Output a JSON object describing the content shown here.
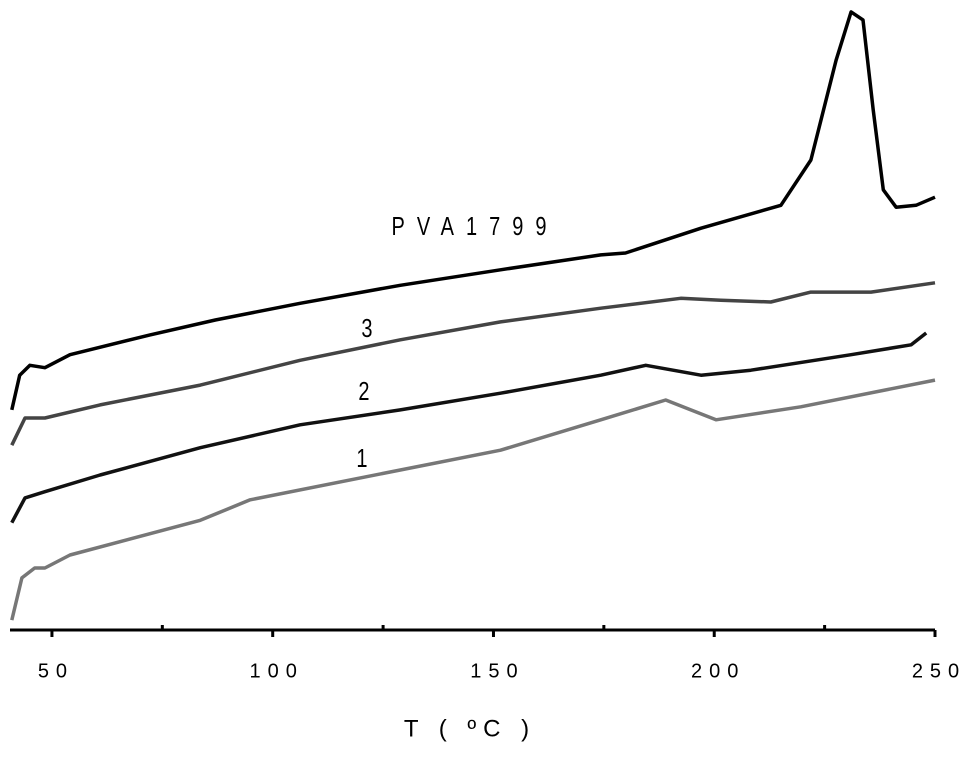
{
  "chart_data": {
    "type": "line",
    "xlabel": "T ( ºC )",
    "xlim": [
      40.5,
      250
    ],
    "ylim": [
      0,
      100
    ],
    "xticks": [
      50,
      100,
      150,
      200,
      250
    ],
    "xminor_ticks": [
      75,
      125,
      175,
      225
    ],
    "series": [
      {
        "name": "PVA1799",
        "color": "#000000",
        "x": [
          40.9,
          42.7,
          45.0,
          48.4,
          54.1,
          72.2,
          87.0,
          106.2,
          128.9,
          151.6,
          174.3,
          179.9,
          197.0,
          215.1,
          221.9,
          227.6,
          231.0,
          233.7,
          236.0,
          238.3,
          241.2,
          245.7,
          250
        ],
        "values": [
          35.5,
          41.1,
          42.7,
          42.3,
          44.4,
          47.6,
          50.0,
          52.7,
          55.6,
          58.1,
          60.5,
          60.8,
          64.8,
          68.5,
          75.8,
          91.9,
          99.7,
          98.4,
          83.9,
          71.0,
          68.2,
          68.5,
          69.8
        ]
      },
      {
        "name": "3",
        "color": "#444444",
        "x": [
          40.9,
          43.9,
          48.4,
          60.9,
          83.6,
          106.2,
          128.9,
          151.6,
          174.3,
          192.4,
          201.5,
          212.8,
          221.9,
          235.5,
          250
        ],
        "values": [
          29.8,
          34.2,
          34.2,
          36.3,
          39.5,
          43.5,
          46.8,
          49.7,
          51.9,
          53.5,
          53.2,
          52.9,
          54.5,
          54.5,
          56.0
        ]
      },
      {
        "name": "2",
        "color": "#111111",
        "x": [
          40.9,
          43.9,
          48.4,
          60.9,
          83.6,
          106.2,
          128.9,
          151.6,
          174.3,
          184.5,
          197.0,
          208.3,
          231.0,
          244.6,
          248.0
        ],
        "values": [
          17.3,
          21.3,
          22.3,
          25.0,
          29.4,
          33.1,
          35.5,
          38.2,
          41.1,
          42.7,
          41.1,
          41.9,
          44.4,
          46.0,
          47.9
        ]
      },
      {
        "name": "1",
        "color": "#777777",
        "x": [
          40.9,
          43.2,
          46.1,
          48.4,
          54.1,
          83.6,
          94.9,
          128.9,
          151.6,
          174.3,
          189.0,
          194.7,
          200.4,
          219.6,
          250
        ],
        "values": [
          1.6,
          8.4,
          10.0,
          10.0,
          12.1,
          17.7,
          21.0,
          25.8,
          29.0,
          33.9,
          37.1,
          35.5,
          33.9,
          36.0,
          40.3
        ]
      }
    ]
  }
}
